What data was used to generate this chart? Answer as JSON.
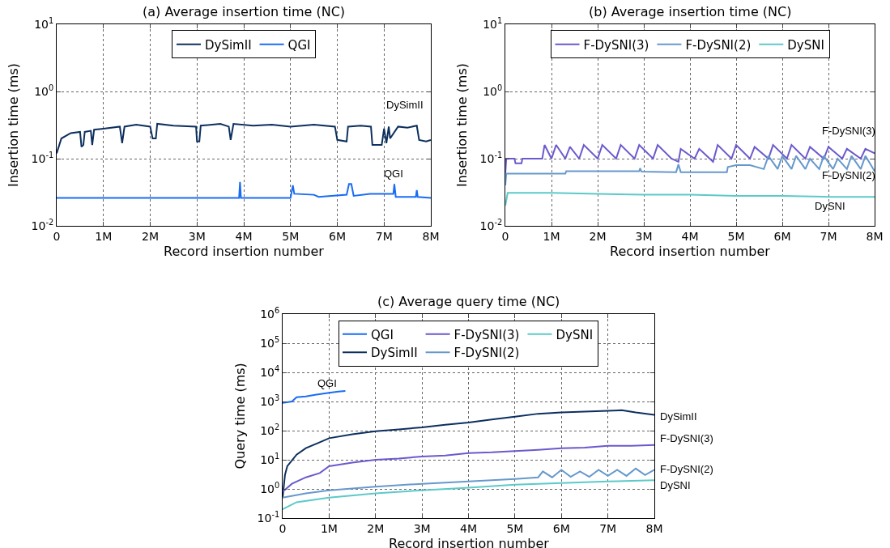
{
  "chart_data": [
    {
      "type": "line",
      "title": "(a) Average insertion time (NC)",
      "xlabel": "Record insertion number",
      "ylabel": "Insertion time (ms)",
      "log": "y",
      "grid": true,
      "legend": "top",
      "marker": "none",
      "line_style": "solid",
      "xlim": [
        0,
        8000000
      ],
      "xticks": [
        0,
        {
          "value": 1000000,
          "label": "1M"
        },
        {
          "value": 2000000,
          "label": "2M"
        },
        {
          "value": 3000000,
          "label": "3M"
        },
        {
          "value": 4000000,
          "label": "4M"
        },
        {
          "value": 5000000,
          "label": "5M"
        },
        {
          "value": 6000000,
          "label": "6M"
        },
        {
          "value": 7000000,
          "label": "7M"
        },
        {
          "value": 8000000,
          "label": "8M"
        }
      ],
      "ylim": [
        0.01,
        10
      ],
      "yticks": [
        {
          "value": 0.01,
          "label": "10$^{-2}$"
        },
        {
          "value": 0.1,
          "label": "10$^{-1}$"
        },
        {
          "value": 1,
          "label": "10$^{0}$"
        },
        {
          "value": 10,
          "label": "10$^{1}$"
        }
      ],
      "series": [
        {
          "name": "DySimII",
          "color": "#0d2f5e",
          "x": [
            0,
            100000,
            300000,
            500000,
            530000,
            570000,
            600000,
            730000,
            760000,
            800000,
            1000000,
            1350000,
            1400000,
            1450000,
            1700000,
            2000000,
            2050000,
            2120000,
            2150000,
            2500000,
            2980000,
            3000000,
            3050000,
            3080000,
            3500000,
            3680000,
            3720000,
            3780000,
            4200000,
            4600000,
            5000000,
            5500000,
            5950000,
            6000000,
            6200000,
            6230000,
            6500000,
            6720000,
            6750000,
            6950000,
            7000000,
            7050000,
            7100000,
            7130000,
            7300000,
            7500000,
            7700000,
            7750000,
            7900000,
            8000000
          ],
          "values": [
            0.12,
            0.2,
            0.24,
            0.25,
            0.15,
            0.16,
            0.25,
            0.26,
            0.16,
            0.27,
            0.28,
            0.3,
            0.17,
            0.3,
            0.32,
            0.3,
            0.2,
            0.2,
            0.33,
            0.31,
            0.3,
            0.18,
            0.18,
            0.31,
            0.33,
            0.3,
            0.19,
            0.33,
            0.31,
            0.32,
            0.3,
            0.32,
            0.3,
            0.19,
            0.18,
            0.3,
            0.31,
            0.3,
            0.16,
            0.16,
            0.28,
            0.17,
            0.3,
            0.2,
            0.3,
            0.29,
            0.31,
            0.19,
            0.18,
            0.19
          ]
        },
        {
          "name": "QGI",
          "color": "#1a6cf5",
          "x": [
            0,
            1000000,
            2000000,
            3000000,
            3900000,
            3920000,
            3940000,
            5000000,
            5050000,
            5080000,
            5500000,
            5600000,
            6200000,
            6250000,
            6300000,
            6350000,
            6700000,
            7200000,
            7220000,
            7250000,
            7680000,
            7700000,
            7720000,
            8000000
          ],
          "values": [
            0.026,
            0.026,
            0.026,
            0.026,
            0.026,
            0.045,
            0.026,
            0.026,
            0.04,
            0.03,
            0.029,
            0.027,
            0.029,
            0.042,
            0.042,
            0.028,
            0.03,
            0.03,
            0.042,
            0.027,
            0.027,
            0.034,
            0.027,
            0.026
          ]
        }
      ],
      "annotations": [
        "DySimII",
        "QGI"
      ]
    },
    {
      "type": "line",
      "title": "(b) Average insertion time (NC)",
      "xlabel": "Record insertion number",
      "ylabel": "Insertion time (ms)",
      "log": "y",
      "grid": true,
      "legend": "top",
      "marker": "none",
      "line_style": "solid",
      "xlim": [
        0,
        8000000
      ],
      "xticks": [
        0,
        {
          "value": 1000000,
          "label": "1M"
        },
        {
          "value": 2000000,
          "label": "2M"
        },
        {
          "value": 3000000,
          "label": "3M"
        },
        {
          "value": 4000000,
          "label": "4M"
        },
        {
          "value": 5000000,
          "label": "5M"
        },
        {
          "value": 6000000,
          "label": "6M"
        },
        {
          "value": 7000000,
          "label": "7M"
        },
        {
          "value": 8000000,
          "label": "8M"
        }
      ],
      "ylim": [
        0.01,
        10
      ],
      "yticks": [
        {
          "value": 0.01,
          "label": "10$^{-2}$"
        },
        {
          "value": 0.1,
          "label": "10$^{-1}$"
        },
        {
          "value": 1,
          "label": "10$^{0}$"
        },
        {
          "value": 10,
          "label": "10$^{1}$"
        }
      ],
      "series": [
        {
          "name": "F-DySNI(3)",
          "color": "#6a5acd",
          "x": [
            0,
            20000,
            200000,
            220000,
            350000,
            370000,
            800000,
            850000,
            1000000,
            1100000,
            1300000,
            1400000,
            1600000,
            1700000,
            2000000,
            2100000,
            2400000,
            2500000,
            2800000,
            2900000,
            3200000,
            3300000,
            3600000,
            3750000,
            3800000,
            4100000,
            4200000,
            4500000,
            4600000,
            4900000,
            5000000,
            5300000,
            5400000,
            5700000,
            5800000,
            6100000,
            6200000,
            6500000,
            6600000,
            6900000,
            7000000,
            7300000,
            7400000,
            7700000,
            7800000,
            8000000
          ],
          "values": [
            0.06,
            0.1,
            0.1,
            0.085,
            0.085,
            0.1,
            0.1,
            0.16,
            0.1,
            0.16,
            0.1,
            0.15,
            0.1,
            0.16,
            0.1,
            0.16,
            0.1,
            0.16,
            0.1,
            0.16,
            0.1,
            0.16,
            0.1,
            0.09,
            0.14,
            0.1,
            0.14,
            0.09,
            0.16,
            0.1,
            0.16,
            0.1,
            0.15,
            0.1,
            0.16,
            0.1,
            0.16,
            0.1,
            0.15,
            0.1,
            0.15,
            0.1,
            0.14,
            0.1,
            0.14,
            0.12
          ]
        },
        {
          "name": "F-DySNI(2)",
          "color": "#6699cc",
          "x": [
            0,
            20000,
            1300000,
            1320000,
            2900000,
            2920000,
            2950000,
            3700000,
            3750000,
            3800000,
            4800000,
            4820000,
            5000000,
            5300000,
            5600000,
            5700000,
            5900000,
            6000000,
            6200000,
            6300000,
            6500000,
            6600000,
            6800000,
            6900000,
            7100000,
            7200000,
            7400000,
            7500000,
            7700000,
            7800000,
            8000000
          ],
          "values": [
            0.04,
            0.06,
            0.06,
            0.065,
            0.065,
            0.072,
            0.064,
            0.063,
            0.082,
            0.063,
            0.063,
            0.075,
            0.08,
            0.08,
            0.07,
            0.11,
            0.07,
            0.11,
            0.07,
            0.11,
            0.07,
            0.1,
            0.07,
            0.11,
            0.07,
            0.1,
            0.07,
            0.11,
            0.07,
            0.11,
            0.065
          ]
        },
        {
          "name": "DySNI",
          "color": "#5ccac8",
          "x": [
            0,
            50000,
            1000000,
            2000000,
            3000000,
            4000000,
            5000000,
            6000000,
            7000000,
            8000000
          ],
          "values": [
            0.02,
            0.031,
            0.031,
            0.03,
            0.029,
            0.029,
            0.028,
            0.028,
            0.027,
            0.027
          ]
        }
      ],
      "annotations": [
        "F-DySNI(3)",
        "F-DySNI(2)",
        "DySNI"
      ]
    },
    {
      "type": "line",
      "title": "(c) Average query time (NC)",
      "xlabel": "Record insertion number",
      "ylabel": "Query time (ms)",
      "log": "y",
      "grid": true,
      "legend": "top",
      "marker": "none",
      "line_style": "solid",
      "xlim": [
        0,
        8000000
      ],
      "xticks": [
        0,
        {
          "value": 1000000,
          "label": "1M"
        },
        {
          "value": 2000000,
          "label": "2M"
        },
        {
          "value": 3000000,
          "label": "3M"
        },
        {
          "value": 4000000,
          "label": "4M"
        },
        {
          "value": 5000000,
          "label": "5M"
        },
        {
          "value": 6000000,
          "label": "6M"
        },
        {
          "value": 7000000,
          "label": "7M"
        },
        {
          "value": 8000000,
          "label": "8M"
        }
      ],
      "ylim": [
        0.1,
        1000000
      ],
      "yticks": [
        {
          "value": 0.1,
          "label": "10$^{-1}$"
        },
        {
          "value": 1,
          "label": "10$^{0}$"
        },
        {
          "value": 10,
          "label": "10$^{1}$"
        },
        {
          "value": 100,
          "label": "10$^{2}$"
        },
        {
          "value": 1000,
          "label": "10$^{3}$"
        },
        {
          "value": 10000,
          "label": "10$^{4}$"
        },
        {
          "value": 100000,
          "label": "10$^{5}$"
        },
        {
          "value": 1000000,
          "label": "10$^{6}$"
        }
      ],
      "series": [
        {
          "name": "QGI",
          "color": "#1a6cf5",
          "x": [
            0,
            200000,
            300000,
            500000,
            700000,
            1000000,
            1200000,
            1350000
          ],
          "values": [
            900,
            1000,
            1400,
            1500,
            1700,
            2000,
            2200,
            2300
          ]
        },
        {
          "name": "DySimII",
          "color": "#0d2f5e",
          "x": [
            0,
            50000,
            100000,
            300000,
            500000,
            800000,
            1000000,
            1500000,
            2000000,
            2500000,
            3000000,
            3500000,
            4000000,
            4500000,
            5000000,
            5500000,
            6000000,
            6500000,
            7000000,
            7300000,
            7600000,
            8000000
          ],
          "values": [
            0.5,
            3,
            6,
            15,
            25,
            40,
            55,
            75,
            95,
            110,
            130,
            160,
            190,
            240,
            300,
            380,
            420,
            450,
            480,
            500,
            420,
            350
          ]
        },
        {
          "name": "F-DySNI(3)",
          "color": "#6a5acd",
          "x": [
            0,
            200000,
            500000,
            800000,
            1000000,
            1500000,
            2000000,
            2500000,
            3000000,
            3500000,
            4000000,
            4500000,
            5000000,
            5500000,
            6000000,
            6500000,
            7000000,
            7500000,
            8000000
          ],
          "values": [
            0.8,
            1.5,
            2.5,
            3.5,
            6,
            8,
            10,
            11,
            13,
            14,
            17,
            18,
            20,
            22,
            25,
            26,
            30,
            30,
            32
          ]
        },
        {
          "name": "F-DySNI(2)",
          "color": "#6699cc",
          "x": [
            0,
            500000,
            1000000,
            2000000,
            3000000,
            4000000,
            5000000,
            5500000,
            5600000,
            5800000,
            6000000,
            6200000,
            6400000,
            6600000,
            6800000,
            7000000,
            7200000,
            7400000,
            7600000,
            7800000,
            8000000
          ],
          "values": [
            0.5,
            0.7,
            0.9,
            1.2,
            1.5,
            1.8,
            2.2,
            2.5,
            4,
            2.5,
            4.5,
            2.6,
            4,
            2.6,
            4.5,
            2.8,
            4.5,
            2.8,
            5,
            3,
            4.5
          ]
        },
        {
          "name": "DySNI",
          "color": "#5ccac8",
          "x": [
            0,
            300000,
            1000000,
            2000000,
            3000000,
            4000000,
            5000000,
            6000000,
            7000000,
            8000000
          ],
          "values": [
            0.2,
            0.35,
            0.5,
            0.7,
            0.9,
            1.1,
            1.4,
            1.6,
            1.8,
            2
          ]
        }
      ],
      "annotations": [
        "QGI",
        "DySimII",
        "F-DySNI(3)",
        "F-DySNI(2)",
        "DySNI"
      ]
    }
  ]
}
